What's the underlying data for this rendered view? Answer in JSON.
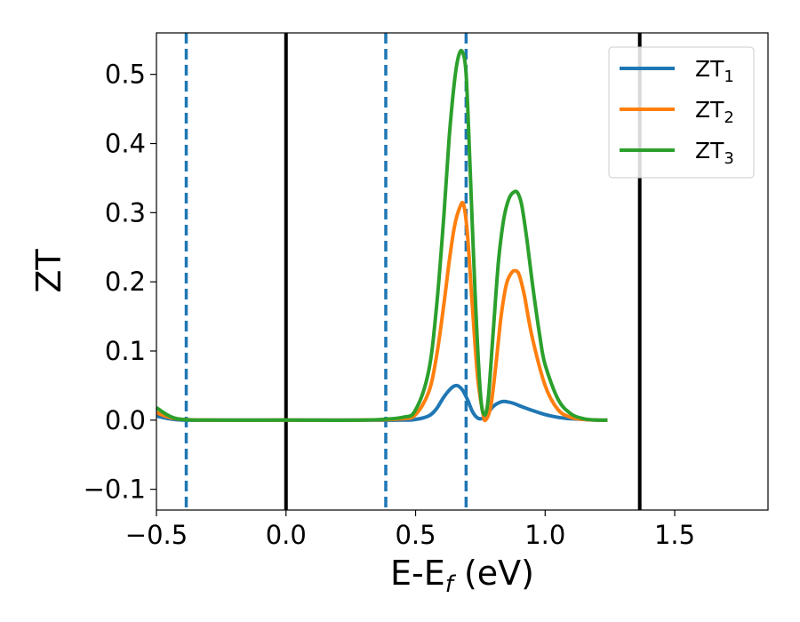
{
  "chart_data": {
    "type": "line",
    "xlabel": "E-E",
    "xlabel_sub": "f",
    "xlabel_unit": " (eV)",
    "ylabel": "ZT",
    "xlim": [
      -0.5,
      1.86
    ],
    "ylim": [
      -0.13,
      0.56
    ],
    "xticks": [
      -0.5,
      0.0,
      0.5,
      1.0,
      1.5
    ],
    "xtick_labels": [
      "−0.5",
      "0.0",
      "0.5",
      "1.0",
      "1.5"
    ],
    "yticks": [
      -0.1,
      0.0,
      0.1,
      0.2,
      0.3,
      0.4,
      0.5
    ],
    "ytick_labels": [
      "−0.1",
      "0.0",
      "0.1",
      "0.2",
      "0.3",
      "0.4",
      "0.5"
    ],
    "grid": false,
    "legend_position": "top-right",
    "vlines": [
      {
        "x": -0.385,
        "style": "dashed",
        "color": "#1f77b4"
      },
      {
        "x": 0.0,
        "style": "solid",
        "color": "#000000"
      },
      {
        "x": 0.385,
        "style": "dashed",
        "color": "#1f77b4"
      },
      {
        "x": 0.695,
        "style": "dashed",
        "color": "#1f77b4"
      },
      {
        "x": 1.365,
        "style": "solid",
        "color": "#000000"
      }
    ],
    "series": [
      {
        "name": "ZT",
        "name_sub": "1",
        "color": "#1f77b4",
        "x": [
          -0.5,
          -0.45,
          -0.4,
          -0.3,
          0.0,
          0.3,
          0.45,
          0.5,
          0.55,
          0.58,
          0.61,
          0.64,
          0.66,
          0.68,
          0.7,
          0.72,
          0.74,
          0.76,
          0.78,
          0.8,
          0.82,
          0.84,
          0.86,
          0.88,
          0.9,
          0.92,
          0.95,
          1.0,
          1.05,
          1.1,
          1.15,
          1.2,
          1.24
        ],
        "y": [
          0.006,
          0.002,
          0.0,
          0.0,
          0.0,
          0.0,
          0.0,
          0.001,
          0.006,
          0.016,
          0.034,
          0.047,
          0.05,
          0.044,
          0.03,
          0.012,
          0.003,
          0.003,
          0.011,
          0.02,
          0.025,
          0.027,
          0.026,
          0.024,
          0.021,
          0.018,
          0.014,
          0.008,
          0.004,
          0.002,
          0.001,
          0.0,
          0.0
        ]
      },
      {
        "name": "ZT",
        "name_sub": "2",
        "color": "#ff7f0e",
        "x": [
          -0.5,
          -0.45,
          -0.4,
          -0.3,
          0.0,
          0.3,
          0.45,
          0.5,
          0.55,
          0.58,
          0.61,
          0.63,
          0.65,
          0.67,
          0.685,
          0.7,
          0.72,
          0.74,
          0.76,
          0.77,
          0.79,
          0.81,
          0.83,
          0.85,
          0.87,
          0.885,
          0.9,
          0.92,
          0.95,
          1.0,
          1.05,
          1.1,
          1.15,
          1.2,
          1.24
        ],
        "y": [
          0.011,
          0.004,
          0.001,
          0.0,
          0.0,
          0.0,
          0.002,
          0.008,
          0.04,
          0.09,
          0.17,
          0.23,
          0.28,
          0.307,
          0.312,
          0.27,
          0.16,
          0.06,
          0.01,
          0.0,
          0.02,
          0.08,
          0.15,
          0.196,
          0.213,
          0.216,
          0.21,
          0.18,
          0.12,
          0.05,
          0.015,
          0.004,
          0.001,
          0.0,
          0.0
        ]
      },
      {
        "name": "ZT",
        "name_sub": "3",
        "color": "#2ca02c",
        "x": [
          -0.5,
          -0.45,
          -0.4,
          -0.3,
          0.0,
          0.3,
          0.45,
          0.5,
          0.55,
          0.58,
          0.61,
          0.63,
          0.65,
          0.665,
          0.68,
          0.695,
          0.71,
          0.73,
          0.75,
          0.765,
          0.78,
          0.8,
          0.82,
          0.84,
          0.86,
          0.88,
          0.895,
          0.91,
          0.93,
          0.95,
          0.98,
          1.0,
          1.05,
          1.1,
          1.15,
          1.2,
          1.24
        ],
        "y": [
          0.018,
          0.006,
          0.001,
          0.0,
          0.0,
          0.0,
          0.004,
          0.015,
          0.07,
          0.16,
          0.3,
          0.41,
          0.49,
          0.525,
          0.533,
          0.5,
          0.37,
          0.18,
          0.04,
          0.008,
          0.03,
          0.13,
          0.23,
          0.29,
          0.32,
          0.33,
          0.328,
          0.31,
          0.26,
          0.2,
          0.12,
          0.08,
          0.03,
          0.009,
          0.002,
          0.0,
          0.0
        ]
      }
    ]
  }
}
